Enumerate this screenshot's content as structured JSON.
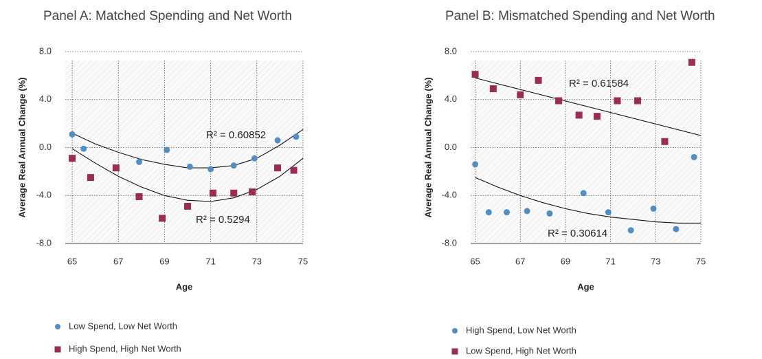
{
  "chart_data": [
    {
      "type": "scatter",
      "title": "Panel A: Matched Spending and Net Worth",
      "x_label": "Age",
      "y_label": "Average Real Annual Change (%)",
      "xlim": [
        64.7,
        75
      ],
      "ylim": [
        -8,
        8
      ],
      "xticks": [
        65,
        67,
        69,
        71,
        73,
        75
      ],
      "yticks": [
        {
          "value": 8,
          "label": "8.0"
        },
        {
          "value": 4,
          "label": "4.0"
        },
        {
          "value": 0,
          "label": "0.0"
        },
        {
          "value": -4,
          "label": "-4.0"
        },
        {
          "value": -8,
          "label": "-8.0"
        }
      ],
      "grid": true,
      "series": [
        {
          "name": "Low Spend, Low Net Worth",
          "color": "#4f8fc6",
          "marker": "circle",
          "x": [
            65.0,
            65.5,
            67.9,
            69.1,
            70.1,
            71.0,
            72.0,
            72.9,
            73.9,
            74.7
          ],
          "values": [
            1.1,
            -0.1,
            -1.2,
            -0.2,
            -1.6,
            -1.8,
            -1.5,
            -0.9,
            0.6,
            0.9
          ],
          "trend": {
            "label": "R² = 0.60852",
            "x": [
              65,
              66,
              67,
              68,
              69,
              70,
              71,
              72,
              73,
              74,
              75
            ],
            "values": [
              1.2,
              0.3,
              -0.4,
              -1.0,
              -1.4,
              -1.7,
              -1.7,
              -1.5,
              -0.9,
              0.2,
              1.5
            ]
          }
        },
        {
          "name": "High Spend, High Net Worth",
          "color": "#9b2d55",
          "marker": "square",
          "x": [
            65.0,
            65.8,
            66.9,
            67.9,
            68.9,
            70.0,
            71.1,
            72.0,
            72.8,
            73.9,
            74.6
          ],
          "values": [
            -0.9,
            -2.5,
            -1.7,
            -4.1,
            -5.9,
            -4.9,
            -3.8,
            -3.8,
            -3.7,
            -1.7,
            -1.9
          ],
          "trend": {
            "label": "R² = 0.5294",
            "x": [
              65,
              66,
              67,
              68,
              69,
              70,
              71,
              72,
              73,
              74,
              75
            ],
            "values": [
              -0.1,
              -1.3,
              -2.4,
              -3.3,
              -4.0,
              -4.4,
              -4.5,
              -4.2,
              -3.5,
              -2.4,
              -0.9
            ]
          }
        }
      ]
    },
    {
      "type": "scatter",
      "title": "Panel B: Mismatched Spending and Net Worth",
      "x_label": "Age",
      "y_label": "Average Real Annual Change (%)",
      "xlim": [
        64.8,
        75
      ],
      "ylim": [
        -8,
        8
      ],
      "xticks": [
        65,
        67,
        69,
        71,
        73,
        75
      ],
      "yticks": [
        {
          "value": 8,
          "label": "8.0"
        },
        {
          "value": 4,
          "label": "4.0"
        },
        {
          "value": 0,
          "label": "0.0"
        },
        {
          "value": -4,
          "label": "-4.0"
        },
        {
          "value": -8,
          "label": "-8.0"
        }
      ],
      "grid": true,
      "series": [
        {
          "name": "High Spend, Low Net Worth",
          "color": "#4f8fc6",
          "marker": "circle",
          "x": [
            65.0,
            65.6,
            66.4,
            67.3,
            68.3,
            69.8,
            70.9,
            71.9,
            72.9,
            73.9,
            74.7
          ],
          "values": [
            -1.4,
            -5.4,
            -5.4,
            -5.3,
            -5.5,
            -3.8,
            -5.4,
            -6.9,
            -5.1,
            -6.8,
            -0.8
          ],
          "trend": {
            "label": "R² = 0.30614",
            "x": [
              65,
              66,
              67,
              68,
              69,
              70,
              71,
              72,
              73,
              74,
              75
            ],
            "values": [
              -2.5,
              -3.3,
              -4.0,
              -4.6,
              -5.1,
              -5.5,
              -5.8,
              -6.0,
              -6.2,
              -6.3,
              -6.3
            ]
          }
        },
        {
          "name": "Low Spend, High Net Worth",
          "color": "#9b2d55",
          "marker": "square",
          "x": [
            65.0,
            65.8,
            67.0,
            67.8,
            68.7,
            69.6,
            70.4,
            71.3,
            72.2,
            73.4,
            74.6
          ],
          "values": [
            6.1,
            4.9,
            4.4,
            5.6,
            3.9,
            2.7,
            2.6,
            3.9,
            3.9,
            0.5,
            7.1
          ],
          "trend": {
            "label": "R² = 0.61584",
            "x": [
              65,
              75
            ],
            "values": [
              5.8,
              1.0
            ]
          }
        }
      ]
    }
  ]
}
